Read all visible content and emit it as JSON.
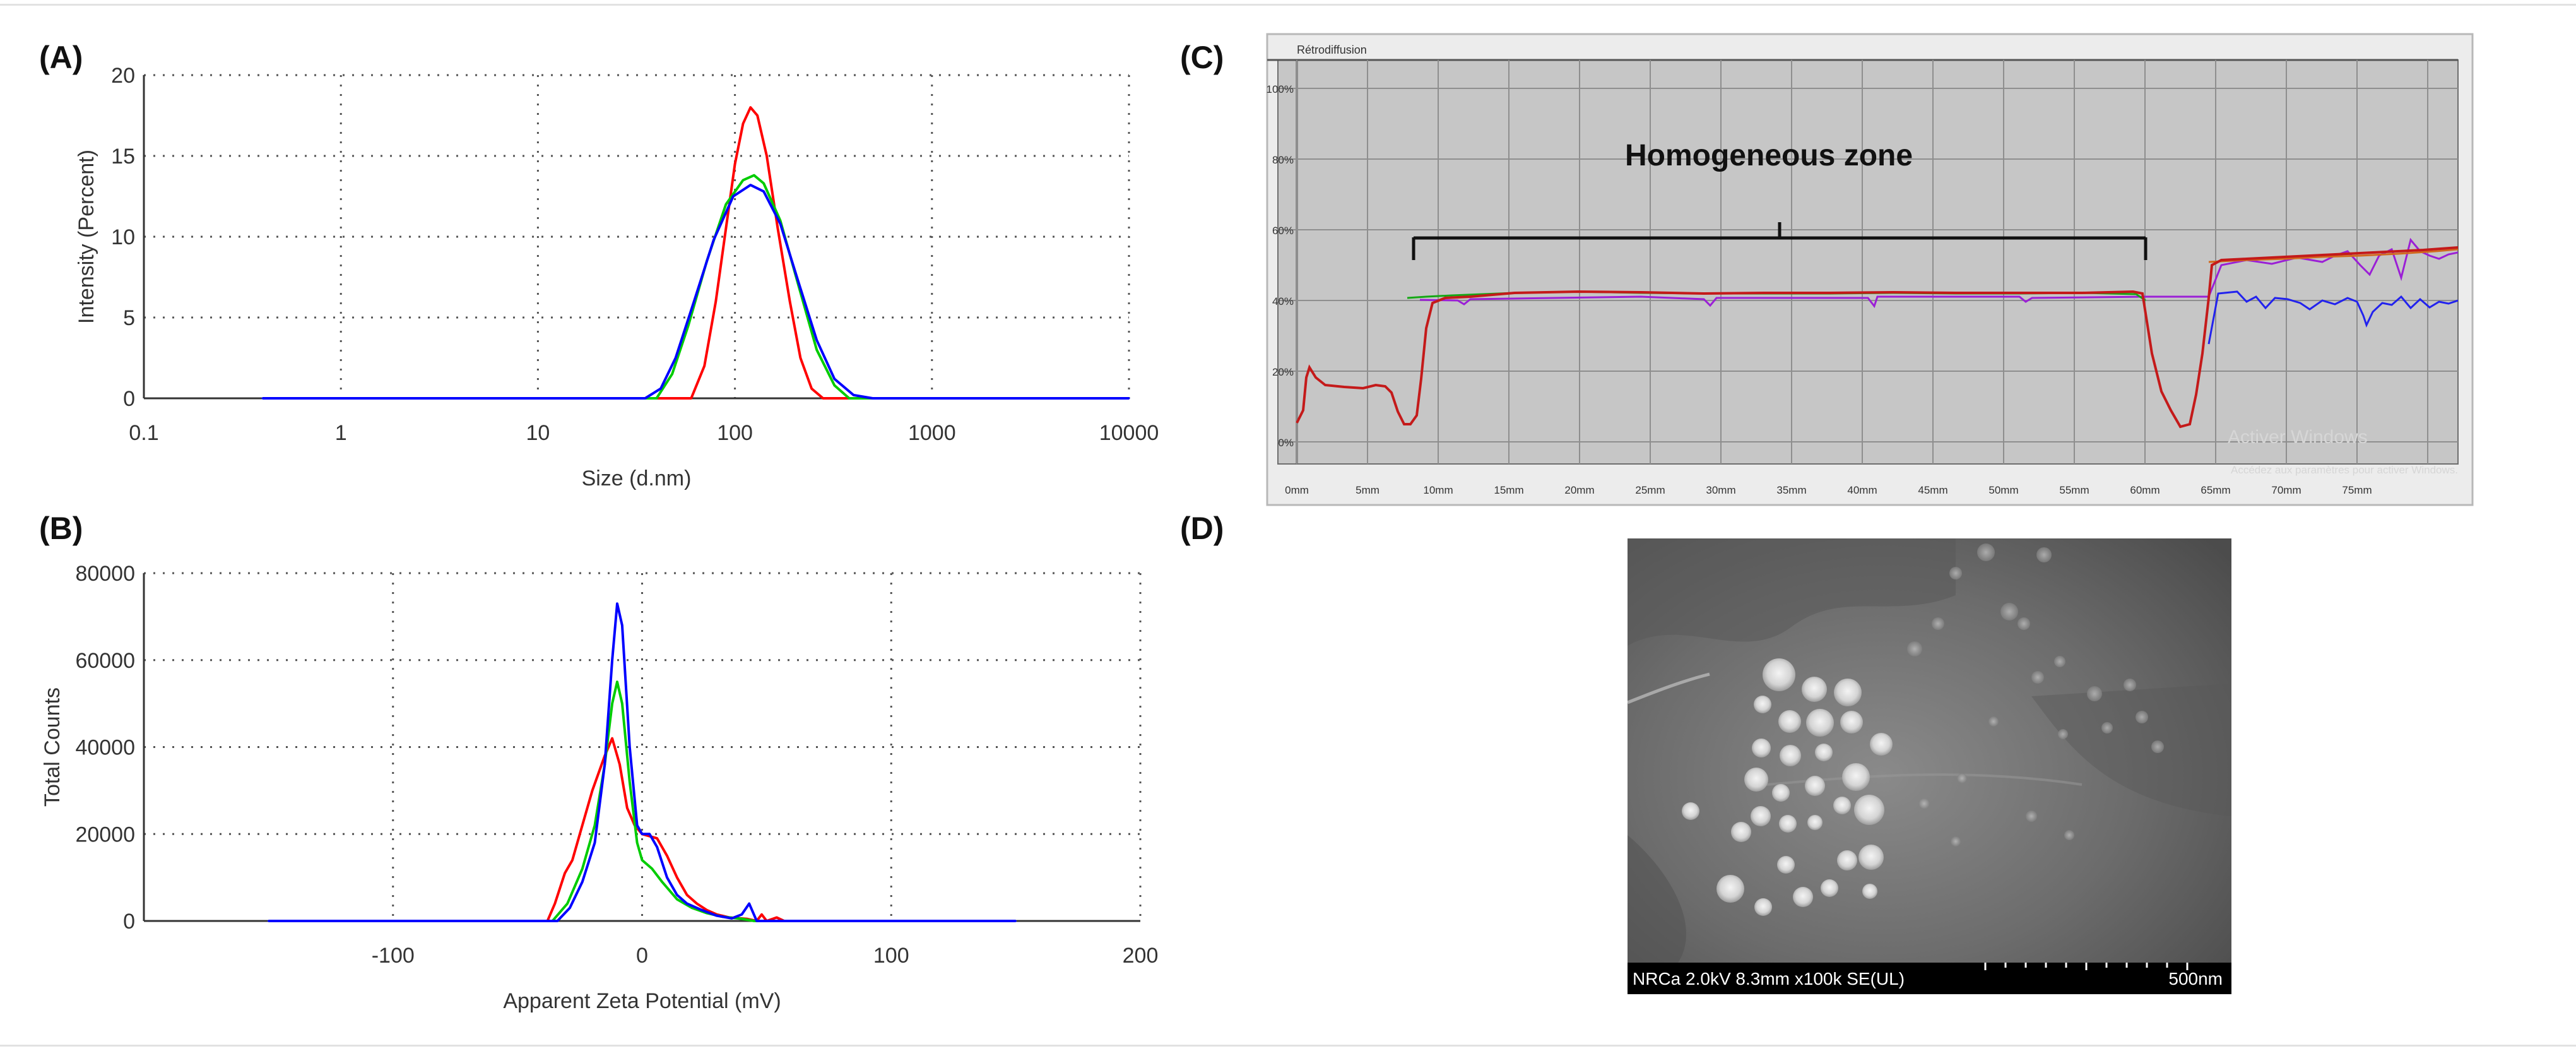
{
  "panel_labels": {
    "a": "(A)",
    "b": "(B)",
    "c": "(C)",
    "d": "(D)"
  },
  "chart_data": [
    {
      "id": "A",
      "type": "line",
      "xscale": "log",
      "xlabel": "Size (d.nm)",
      "ylabel": "Intensity (Percent)",
      "xlim": [
        0.1,
        10000
      ],
      "ylim": [
        0,
        20
      ],
      "xticks": [
        0.1,
        1,
        10,
        100,
        1000,
        10000
      ],
      "xtick_labels": [
        "0.1",
        "1",
        "10",
        "100",
        "1000",
        "10000"
      ],
      "yticks": [
        0,
        5,
        10,
        15,
        20
      ],
      "ytick_labels": [
        "0",
        "5",
        "10",
        "15",
        "20"
      ],
      "grid": "dotted",
      "series": [
        {
          "color": "#ff0000",
          "points": [
            [
              0.4,
              0
            ],
            [
              60,
              0
            ],
            [
              70,
              2
            ],
            [
              80,
              6
            ],
            [
              90,
              10.5
            ],
            [
              100,
              14.5
            ],
            [
              110,
              17
            ],
            [
              120,
              18
            ],
            [
              130,
              17.5
            ],
            [
              145,
              15
            ],
            [
              165,
              10.5
            ],
            [
              190,
              6
            ],
            [
              215,
              2.5
            ],
            [
              245,
              0.6
            ],
            [
              280,
              0
            ],
            [
              10000,
              0
            ]
          ]
        },
        {
          "color": "#00cc00",
          "points": [
            [
              0.4,
              0
            ],
            [
              40,
              0
            ],
            [
              48,
              1.5
            ],
            [
              58,
              4.5
            ],
            [
              72,
              8.5
            ],
            [
              90,
              12
            ],
            [
              110,
              13.5
            ],
            [
              125,
              13.8
            ],
            [
              140,
              13.3
            ],
            [
              170,
              11
            ],
            [
              210,
              7
            ],
            [
              260,
              3
            ],
            [
              320,
              0.8
            ],
            [
              380,
              0
            ],
            [
              10000,
              0
            ]
          ]
        },
        {
          "color": "#0000ff",
          "points": [
            [
              0.4,
              0
            ],
            [
              35,
              0
            ],
            [
              42,
              0.6
            ],
            [
              50,
              2.5
            ],
            [
              62,
              6
            ],
            [
              78,
              9.8
            ],
            [
              98,
              12.5
            ],
            [
              120,
              13.2
            ],
            [
              140,
              12.8
            ],
            [
              170,
              10.8
            ],
            [
              210,
              7.2
            ],
            [
              260,
              3.6
            ],
            [
              320,
              1.2
            ],
            [
              400,
              0.2
            ],
            [
              500,
              0
            ],
            [
              10000,
              0
            ]
          ]
        }
      ]
    },
    {
      "id": "B",
      "type": "line",
      "xlabel": "Apparent Zeta Potential (mV)",
      "ylabel": "Total Counts",
      "xlim": [
        -200,
        200
      ],
      "ylim": [
        0,
        80000
      ],
      "xticks": [
        -100,
        0,
        100,
        200
      ],
      "xtick_labels": [
        "-100",
        "0",
        "100",
        "200"
      ],
      "yticks": [
        0,
        20000,
        40000,
        60000,
        80000
      ],
      "ytick_labels": [
        "0",
        "20000",
        "40000",
        "60000",
        "80000"
      ],
      "grid": "dotted",
      "series": [
        {
          "color": "#ff0000",
          "points": [
            [
              -150,
              0
            ],
            [
              -38,
              0
            ],
            [
              -35,
              4000
            ],
            [
              -31,
              11000
            ],
            [
              -28,
              14000
            ],
            [
              -25,
              20000
            ],
            [
              -20,
              30000
            ],
            [
              -15,
              38000
            ],
            [
              -12,
              42000
            ],
            [
              -9,
              36000
            ],
            [
              -6,
              26000
            ],
            [
              -3,
              22000
            ],
            [
              0,
              20000
            ],
            [
              3,
              19500
            ],
            [
              6,
              19000
            ],
            [
              10,
              15000
            ],
            [
              14,
              10000
            ],
            [
              18,
              6000
            ],
            [
              22,
              4000
            ],
            [
              26,
              2500
            ],
            [
              30,
              1500
            ],
            [
              35,
              800
            ],
            [
              42,
              500
            ],
            [
              46,
              0
            ],
            [
              48,
              1500
            ],
            [
              50,
              0
            ],
            [
              54,
              800
            ],
            [
              57,
              0
            ],
            [
              150,
              0
            ]
          ]
        },
        {
          "color": "#00cc00",
          "points": [
            [
              -150,
              0
            ],
            [
              -36,
              0
            ],
            [
              -30,
              4000
            ],
            [
              -24,
              12000
            ],
            [
              -19,
              22000
            ],
            [
              -15,
              36000
            ],
            [
              -12,
              50000
            ],
            [
              -10,
              55000
            ],
            [
              -8,
              50000
            ],
            [
              -5,
              32000
            ],
            [
              -2,
              18000
            ],
            [
              0,
              14000
            ],
            [
              4,
              12000
            ],
            [
              8,
              9000
            ],
            [
              14,
              5000
            ],
            [
              20,
              3000
            ],
            [
              26,
              1800
            ],
            [
              32,
              1000
            ],
            [
              40,
              500
            ],
            [
              45,
              0
            ],
            [
              150,
              0
            ]
          ]
        },
        {
          "color": "#0000ff",
          "points": [
            [
              -150,
              0
            ],
            [
              -34,
              0
            ],
            [
              -29,
              3000
            ],
            [
              -24,
              9000
            ],
            [
              -19,
              18000
            ],
            [
              -15,
              36000
            ],
            [
              -12,
              60000
            ],
            [
              -10,
              73000
            ],
            [
              -8,
              68000
            ],
            [
              -5,
              40000
            ],
            [
              -2,
              22000
            ],
            [
              0,
              20000
            ],
            [
              3,
              20000
            ],
            [
              6,
              17000
            ],
            [
              10,
              10000
            ],
            [
              14,
              6000
            ],
            [
              18,
              4000
            ],
            [
              24,
              2500
            ],
            [
              30,
              1200
            ],
            [
              36,
              600
            ],
            [
              40,
              1500
            ],
            [
              43,
              4000
            ],
            [
              46,
              0
            ],
            [
              150,
              0
            ]
          ]
        }
      ]
    }
  ],
  "panel_c": {
    "header_label": "Rétrodiffusion",
    "ytick_labels": [
      "100%",
      "80%",
      "60%",
      "40%",
      "20%",
      "0%"
    ],
    "xtick_labels": [
      "0mm",
      "5mm",
      "10mm",
      "15mm",
      "20mm",
      "25mm",
      "30mm",
      "35mm",
      "40mm",
      "45mm",
      "50mm",
      "55mm",
      "60mm",
      "65mm",
      "70mm",
      "75mm"
    ],
    "annotation": "Homogeneous zone",
    "watermark_line1": "Activer Windows",
    "watermark_line2": "Accédez aux paramètres pour activer Windows."
  },
  "panel_d": {
    "info_text": "NRCa 2.0kV 8.3mm x100k SE(UL)",
    "scale_text": "500nm"
  }
}
